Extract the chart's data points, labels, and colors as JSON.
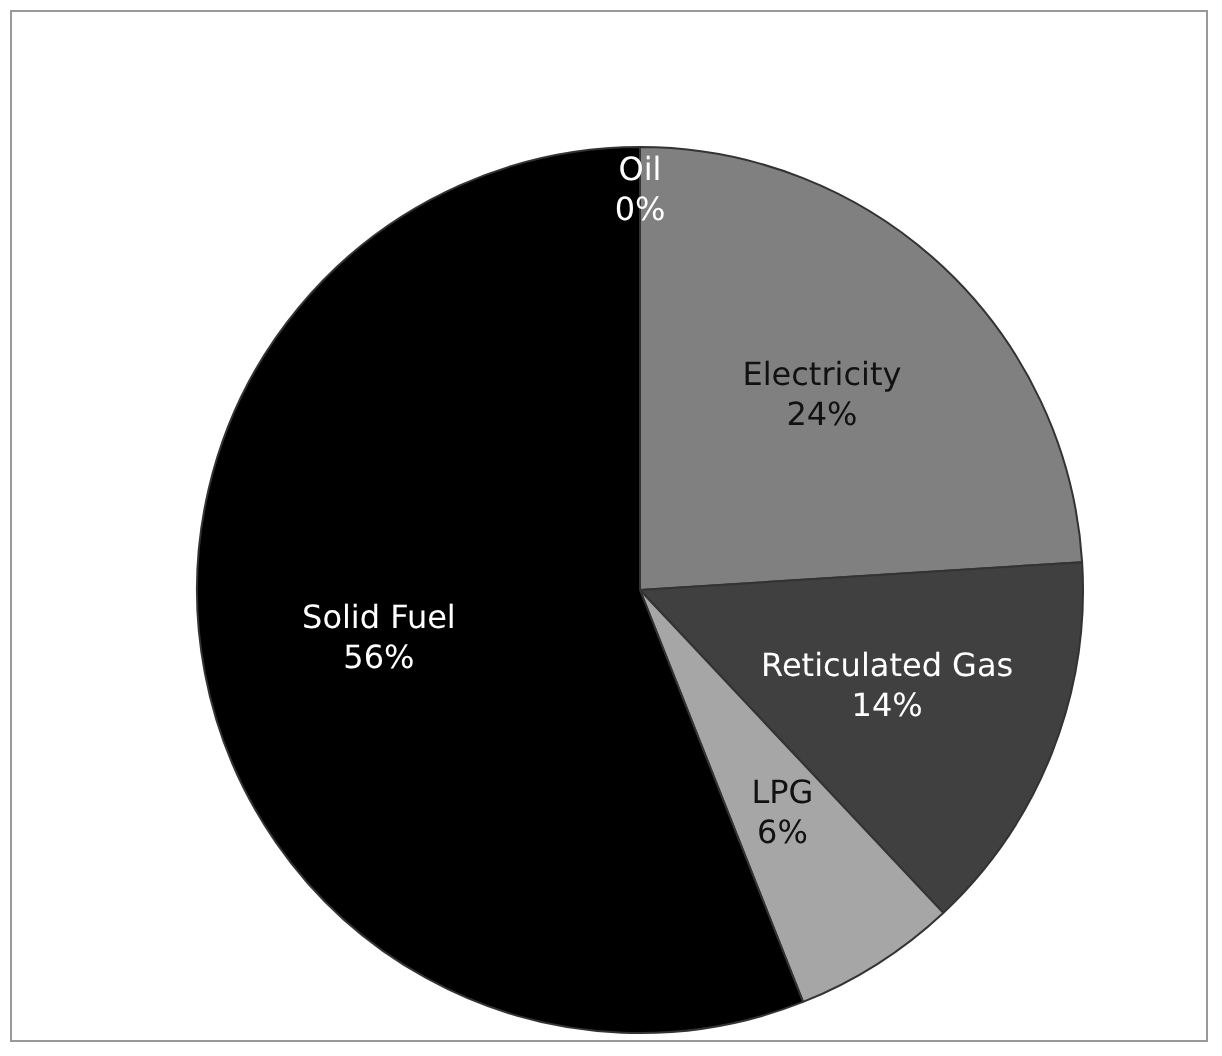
{
  "chart_data": {
    "type": "pie",
    "categories": [
      "Oil",
      "Electricity",
      "Reticulated Gas",
      "LPG",
      "Solid Fuel"
    ],
    "values": [
      0,
      24,
      14,
      6,
      56
    ],
    "colors": [
      "#000000",
      "#808080",
      "#404040",
      "#a6a6a6",
      "#000000"
    ],
    "value_labels": [
      "0%",
      "24%",
      "14%",
      "6%",
      "56%"
    ],
    "legend": false
  }
}
